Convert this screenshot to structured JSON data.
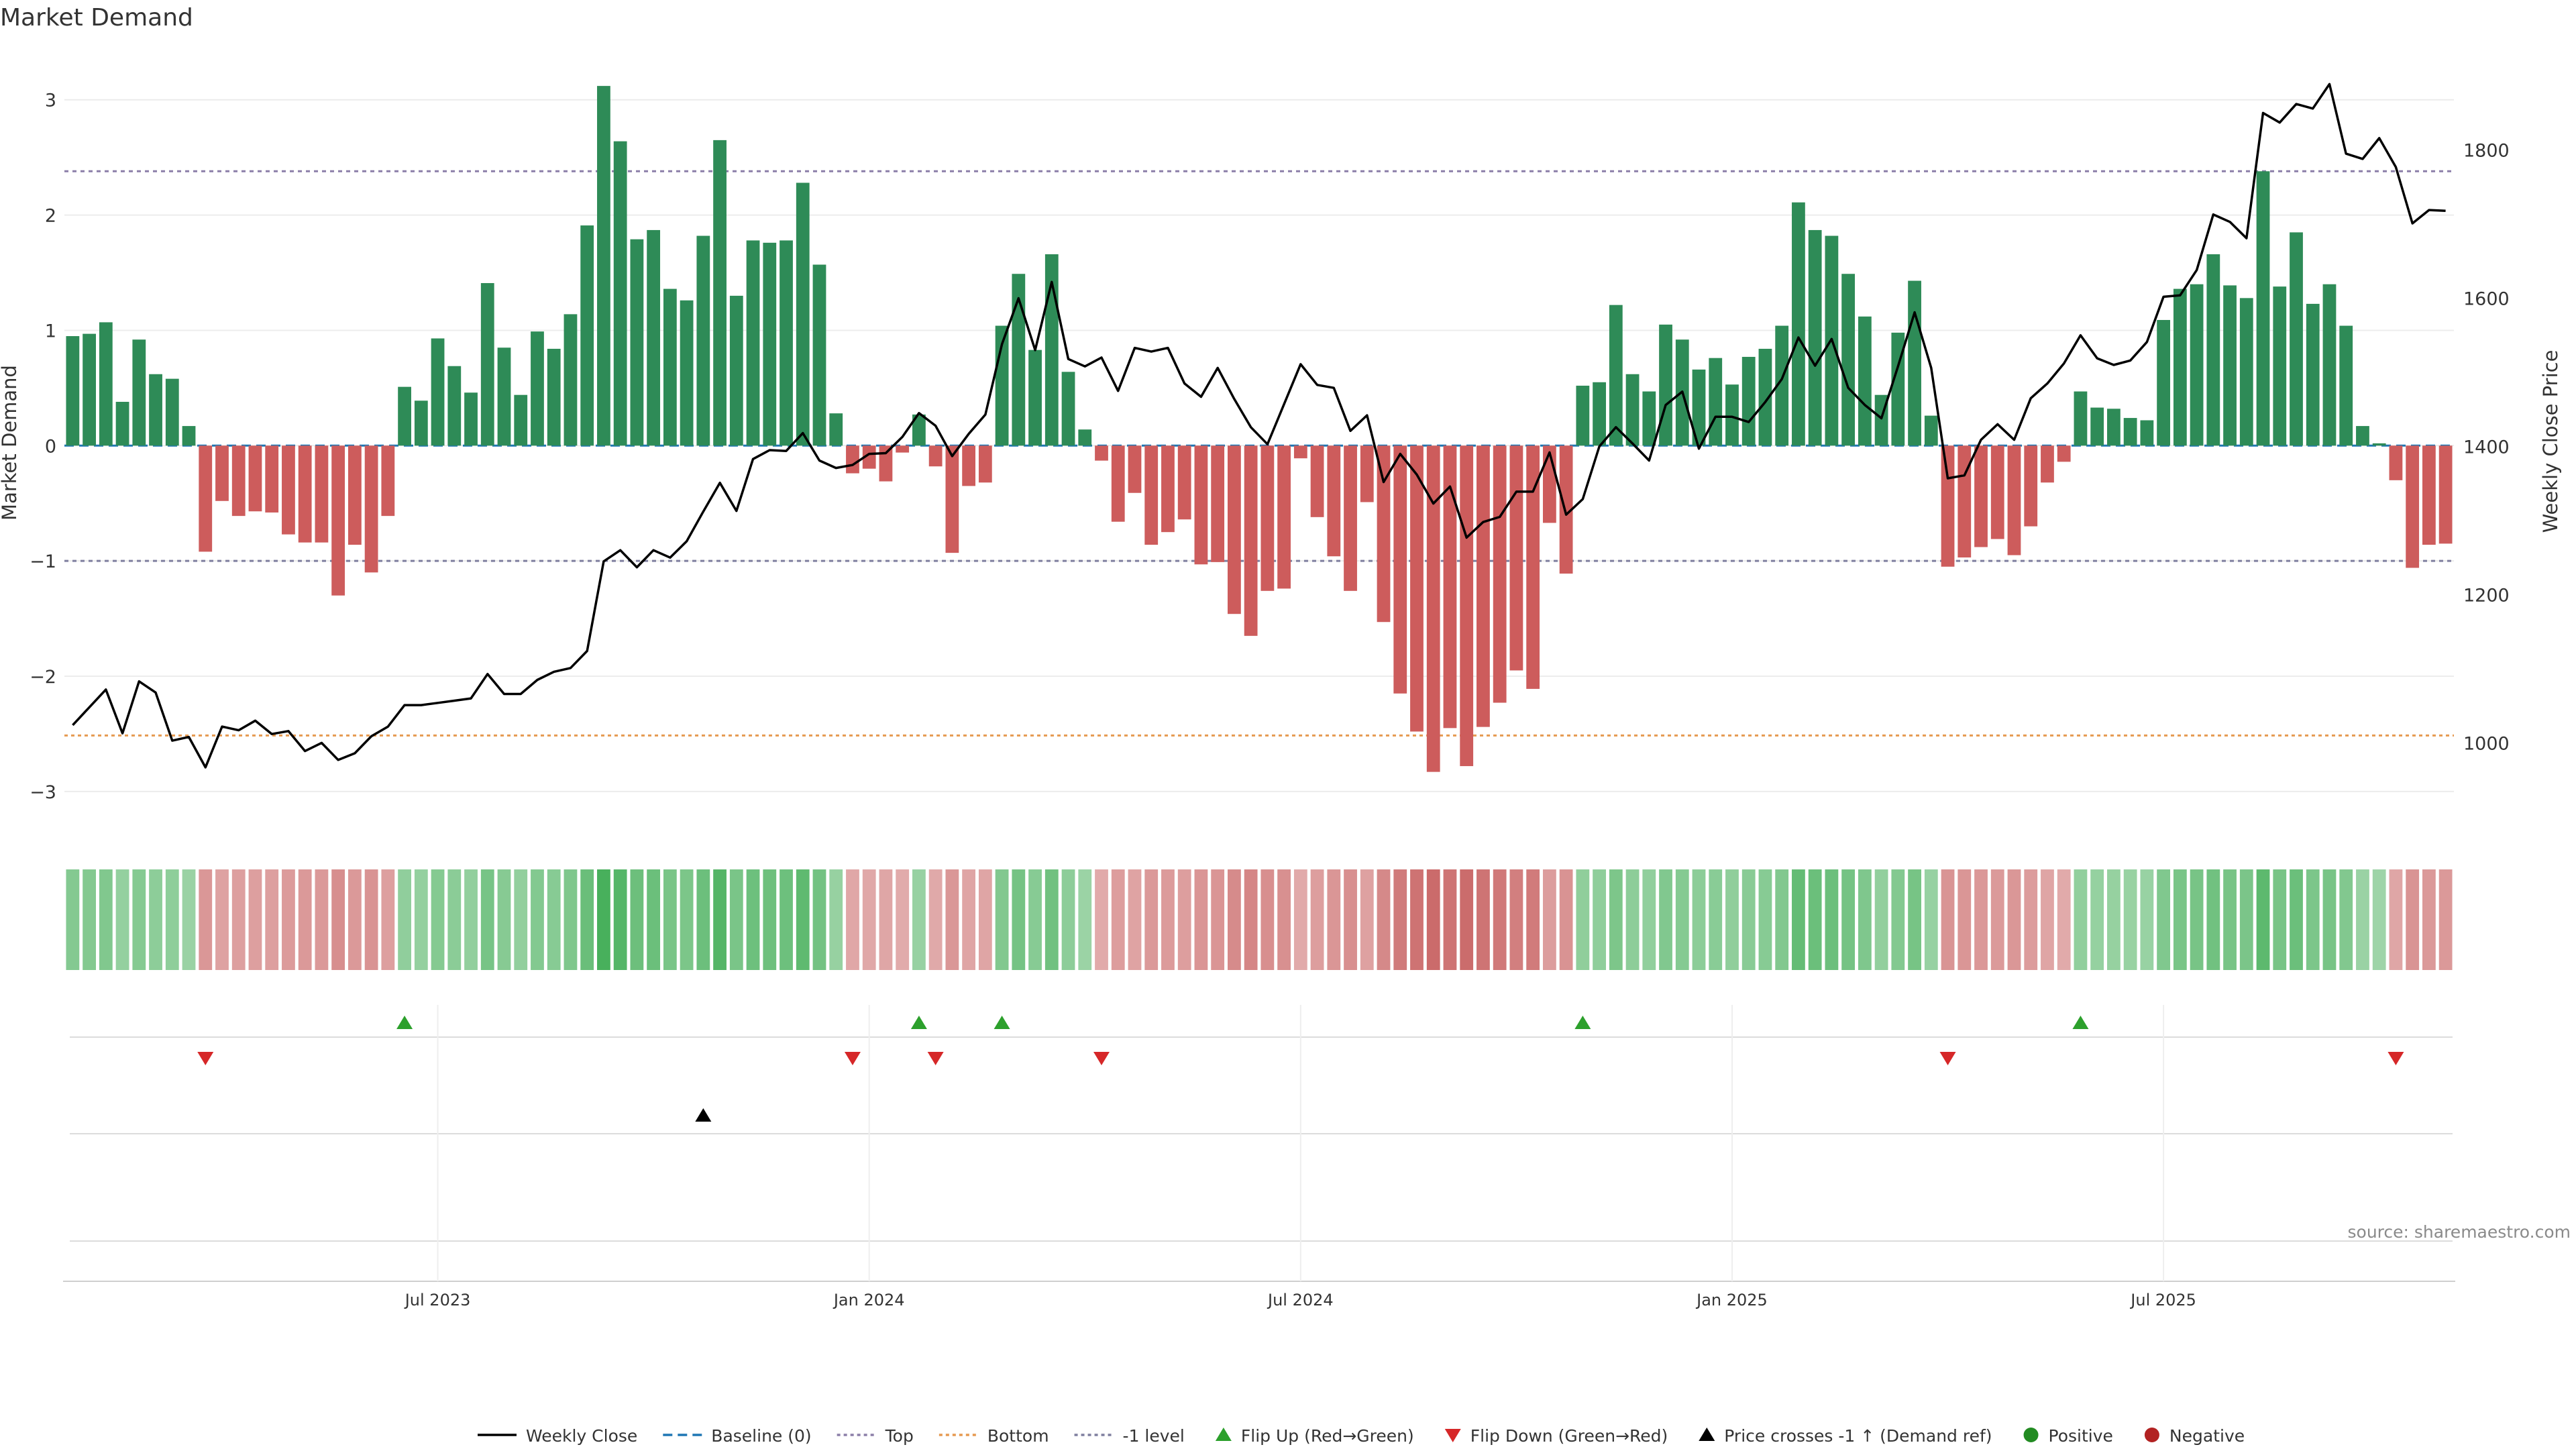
{
  "chart_data": {
    "type": "bar",
    "title": "Market Demand",
    "ylabel_left": "Market Demand",
    "ylabel_right": "Weekly Close Price",
    "source": "source: sharemaestro.com",
    "ylim_left": [
      -3.35,
      3.4
    ],
    "ylim_right": [
      880,
      1930
    ],
    "yticks_left": [
      {
        "v": 3,
        "label": "3"
      },
      {
        "v": 2,
        "label": "2"
      },
      {
        "v": 1,
        "label": "1"
      },
      {
        "v": 0,
        "label": "0"
      },
      {
        "v": -1,
        "label": "−1"
      },
      {
        "v": -2,
        "label": "−2"
      },
      {
        "v": -3,
        "label": "−3"
      }
    ],
    "yticks_right": [
      {
        "v": 1800,
        "label": "1800"
      },
      {
        "v": 1600,
        "label": "1600"
      },
      {
        "v": 1400,
        "label": "1400"
      },
      {
        "v": 1200,
        "label": "1200"
      },
      {
        "v": 1000,
        "label": "1000"
      }
    ],
    "xticks": [
      {
        "i": 22,
        "label": "Jul 2023"
      },
      {
        "i": 48,
        "label": "Jan 2024"
      },
      {
        "i": 74,
        "label": "Jul 2024"
      },
      {
        "i": 100,
        "label": "Jan 2025"
      },
      {
        "i": 126,
        "label": "Jul 2025"
      }
    ],
    "reference_lines": {
      "baseline": 0,
      "top": 2.38,
      "bottom": -2.54,
      "minus_one": -1
    },
    "demand": [
      0.95,
      0.97,
      1.07,
      0.38,
      0.92,
      0.62,
      0.58,
      0.17,
      -0.92,
      -0.48,
      -0.61,
      -0.57,
      -0.58,
      -0.77,
      -0.84,
      -0.84,
      -1.3,
      -0.86,
      -1.1,
      -0.61,
      0.51,
      0.39,
      0.93,
      0.69,
      0.46,
      1.41,
      0.85,
      0.44,
      0.99,
      0.84,
      1.14,
      1.91,
      3.12,
      2.64,
      1.79,
      1.87,
      1.36,
      1.26,
      1.82,
      2.65,
      1.3,
      1.78,
      1.76,
      1.78,
      2.28,
      1.57,
      0.28,
      -0.24,
      -0.2,
      -0.31,
      -0.06,
      0.27,
      -0.18,
      -0.93,
      -0.35,
      -0.32,
      1.04,
      1.49,
      0.83,
      1.66,
      0.64,
      0.14,
      -0.13,
      -0.66,
      -0.41,
      -0.86,
      -0.75,
      -0.64,
      -1.03,
      -1.01,
      -1.46,
      -1.65,
      -1.26,
      -1.24,
      -0.11,
      -0.62,
      -0.96,
      -1.26,
      -0.49,
      -1.53,
      -2.15,
      -2.48,
      -2.83,
      -2.45,
      -2.78,
      -2.44,
      -2.23,
      -1.95,
      -2.11,
      -0.67,
      -1.11,
      0.52,
      0.55,
      1.22,
      0.62,
      0.47,
      1.05,
      0.92,
      0.66,
      0.76,
      0.53,
      0.77,
      0.84,
      1.04,
      2.11,
      1.87,
      1.82,
      1.49,
      1.12,
      0.44,
      0.98,
      1.43,
      0.26,
      -1.05,
      -0.97,
      -0.88,
      -0.81,
      -0.95,
      -0.7,
      -0.32,
      -0.14,
      0.47,
      0.33,
      0.32,
      0.24,
      0.22,
      1.09,
      1.36,
      1.4,
      1.66,
      1.39,
      1.28,
      2.38,
      1.38,
      1.85,
      1.23,
      1.4,
      1.04,
      0.17,
      0.02,
      -0.3,
      -1.06,
      -0.86,
      -0.85
    ],
    "weekly_close": [
      1024,
      1048,
      1072,
      1013,
      1083,
      1068,
      1003,
      1008,
      967,
      1022,
      1017,
      1030,
      1012,
      1016,
      989,
      1000,
      977,
      986,
      1009,
      1022,
      1051,
      1051,
      1054,
      1057,
      1060,
      1093,
      1066,
      1066,
      1085,
      1096,
      1101,
      1124,
      1245,
      1260,
      1237,
      1260,
      1250,
      1272,
      1312,
      1351,
      1313,
      1383,
      1395,
      1394,
      1418,
      1381,
      1371,
      1375,
      1390,
      1391,
      1413,
      1445,
      1428,
      1387,
      1417,
      1443,
      1538,
      1600,
      1530,
      1622,
      1518,
      1508,
      1520,
      1475,
      1533,
      1528,
      1533,
      1485,
      1467,
      1506,
      1464,
      1426,
      1403,
      1457,
      1511,
      1483,
      1479,
      1421,
      1442,
      1352,
      1390,
      1362,
      1323,
      1346,
      1277,
      1298,
      1305,
      1339,
      1339,
      1392,
      1308,
      1329,
      1400,
      1426,
      1404,
      1381,
      1456,
      1474,
      1397,
      1440,
      1440,
      1433,
      1460,
      1491,
      1547,
      1509,
      1545,
      1479,
      1456,
      1438,
      1508,
      1581,
      1506,
      1357,
      1361,
      1409,
      1430,
      1409,
      1465,
      1485,
      1512,
      1550,
      1519,
      1510,
      1516,
      1541,
      1602,
      1604,
      1638,
      1713,
      1703,
      1681,
      1850,
      1837,
      1862,
      1856,
      1889,
      1795,
      1788,
      1816,
      1777,
      1701,
      1719,
      1718
    ],
    "flip_up": [
      20,
      51,
      56,
      91,
      121
    ],
    "flip_down": [
      8,
      47,
      52,
      62,
      113,
      140
    ],
    "price_cross": [
      38
    ],
    "heat_levels": [
      1.0,
      1.0,
      1.0,
      0.3,
      1.0,
      0.6,
      0.6,
      0.15,
      -0.92,
      -0.48,
      -0.61,
      -0.57,
      -0.58,
      -0.77,
      -0.84,
      -0.84,
      -1.3,
      -0.86,
      -1.1,
      -0.61
    ],
    "legend": [
      "Weekly Close",
      "Baseline (0)",
      "Top",
      "Bottom",
      "-1 level",
      "Flip Up (Red→Green)",
      "Flip Down (Green→Red)",
      "Price crosses -1 ↑ (Demand ref)",
      "Positive",
      "Negative"
    ],
    "colors": {
      "positive": "#2e8b57",
      "negative": "#cd5c5c",
      "line": "#000000",
      "baseline": "#1f77b4",
      "top": "#8c7fa8",
      "bottom": "#e69a50",
      "minus_one": "#7f7f9f",
      "flip_up": "#2ca02c",
      "flip_down": "#d62728",
      "dot_positive": "#228b22",
      "dot_negative": "#b22222"
    }
  }
}
